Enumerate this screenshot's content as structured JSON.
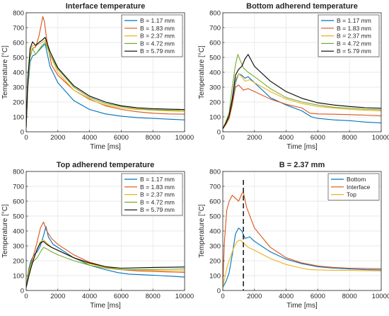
{
  "colors": {
    "blue": "#0072BD",
    "orange": "#D95319",
    "yellow": "#EDB120",
    "green": "#77AC30",
    "black": "#000000"
  },
  "chart_data": [
    {
      "type": "line",
      "title": "Interface temperature",
      "xlabel": "Time [ms]",
      "ylabel": "Temperature [°C]",
      "xlim": [
        0,
        10000
      ],
      "ylim": [
        0,
        800
      ],
      "xticks": [
        0,
        2000,
        4000,
        6000,
        8000,
        10000
      ],
      "yticks": [
        0,
        100,
        200,
        300,
        400,
        500,
        600,
        700,
        800
      ],
      "grid": true,
      "legend_position": "top-right",
      "series": [
        {
          "name": "B = 1.17 mm",
          "color": "blue",
          "x": [
            0,
            100,
            250,
            400,
            600,
            800,
            1000,
            1200,
            1500,
            2000,
            3000,
            4000,
            5000,
            6000,
            7000,
            8000,
            9000,
            10000
          ],
          "y": [
            30,
            280,
            470,
            510,
            520,
            545,
            570,
            590,
            440,
            330,
            210,
            150,
            120,
            105,
            95,
            90,
            85,
            80
          ]
        },
        {
          "name": "B = 1.83 mm",
          "color": "orange",
          "x": [
            0,
            100,
            250,
            400,
            600,
            800,
            950,
            1050,
            1150,
            1300,
            1600,
            2000,
            3000,
            4000,
            5000,
            6000,
            7000,
            8000,
            9000,
            10000
          ],
          "y": [
            30,
            300,
            510,
            560,
            570,
            640,
            720,
            775,
            740,
            620,
            450,
            380,
            280,
            220,
            175,
            150,
            135,
            125,
            120,
            118
          ]
        },
        {
          "name": "B = 2.37 mm",
          "color": "yellow",
          "x": [
            0,
            100,
            250,
            400,
            600,
            800,
            1000,
            1200,
            1500,
            2000,
            3000,
            4000,
            5000,
            6000,
            7000,
            8000,
            9000,
            10000
          ],
          "y": [
            30,
            320,
            540,
            580,
            580,
            590,
            600,
            615,
            520,
            400,
            280,
            215,
            180,
            160,
            150,
            145,
            140,
            138
          ]
        },
        {
          "name": "B = 4.72 mm",
          "color": "green",
          "x": [
            0,
            100,
            250,
            400,
            600,
            800,
            1000,
            1200,
            1500,
            2000,
            3000,
            4000,
            5000,
            6000,
            7000,
            8000,
            9000,
            10000
          ],
          "y": [
            30,
            320,
            500,
            560,
            520,
            550,
            580,
            600,
            520,
            420,
            300,
            230,
            190,
            170,
            155,
            148,
            145,
            143
          ]
        },
        {
          "name": "B = 5.79 mm",
          "color": "black",
          "x": [
            0,
            100,
            250,
            400,
            600,
            800,
            1000,
            1200,
            1500,
            2000,
            3000,
            4000,
            5000,
            6000,
            7000,
            8000,
            9000,
            10000
          ],
          "y": [
            30,
            350,
            560,
            605,
            580,
            600,
            615,
            635,
            540,
            430,
            310,
            240,
            200,
            175,
            162,
            155,
            152,
            150
          ]
        }
      ]
    },
    {
      "type": "line",
      "title": "Bottom adherend temperature",
      "xlabel": "Time [ms]",
      "ylabel": "Temperature [°C]",
      "xlim": [
        0,
        10000
      ],
      "ylim": [
        0,
        800
      ],
      "xticks": [
        0,
        2000,
        4000,
        6000,
        8000,
        10000
      ],
      "yticks": [
        0,
        100,
        200,
        300,
        400,
        500,
        600,
        700,
        800
      ],
      "grid": true,
      "legend_position": "top-right",
      "series": [
        {
          "name": "B = 1.17 mm",
          "color": "blue",
          "x": [
            0,
            200,
            400,
            600,
            800,
            1000,
            1200,
            1400,
            1600,
            2000,
            3000,
            4000,
            5000,
            5600,
            6000,
            7000,
            8000,
            9000,
            10000
          ],
          "y": [
            20,
            60,
            100,
            200,
            330,
            390,
            380,
            360,
            370,
            330,
            230,
            180,
            140,
            100,
            90,
            80,
            75,
            65,
            60
          ]
        },
        {
          "name": "B = 1.83 mm",
          "color": "orange",
          "x": [
            0,
            200,
            400,
            600,
            800,
            1000,
            1300,
            1600,
            2000,
            3000,
            4000,
            5000,
            5500,
            6000,
            7000,
            8000,
            9000,
            10000
          ],
          "y": [
            20,
            50,
            90,
            180,
            300,
            315,
            280,
            290,
            270,
            220,
            185,
            160,
            125,
            120,
            118,
            115,
            112,
            108
          ]
        },
        {
          "name": "B = 2.37 mm",
          "color": "yellow",
          "x": [
            0,
            200,
            400,
            600,
            800,
            1000,
            1200,
            1400,
            1700,
            2000,
            3000,
            4000,
            5000,
            6000,
            7000,
            8000,
            9000,
            10000
          ],
          "y": [
            20,
            60,
            110,
            230,
            350,
            390,
            370,
            340,
            350,
            330,
            270,
            220,
            190,
            170,
            160,
            150,
            145,
            140
          ]
        },
        {
          "name": "B = 4.72 mm",
          "color": "green",
          "x": [
            0,
            200,
            400,
            600,
            800,
            950,
            1100,
            1300,
            1600,
            2000,
            3000,
            4000,
            5000,
            6000,
            7000,
            8000,
            9000,
            10000
          ],
          "y": [
            20,
            70,
            130,
            300,
            450,
            520,
            480,
            430,
            400,
            370,
            290,
            230,
            200,
            180,
            165,
            158,
            152,
            148
          ]
        },
        {
          "name": "B = 5.79 mm",
          "color": "black",
          "x": [
            0,
            200,
            400,
            600,
            800,
            1000,
            1200,
            1400,
            1600,
            2000,
            3000,
            4000,
            5000,
            6000,
            7000,
            8000,
            9000,
            10000
          ],
          "y": [
            20,
            60,
            110,
            220,
            380,
            420,
            440,
            490,
            520,
            440,
            340,
            270,
            225,
            195,
            180,
            170,
            162,
            158
          ]
        }
      ]
    },
    {
      "type": "line",
      "title": "Top adherend temperature",
      "xlabel": "Time [ms]",
      "ylabel": "Temperature [°C]",
      "xlim": [
        0,
        10000
      ],
      "ylim": [
        0,
        800
      ],
      "xticks": [
        0,
        2000,
        4000,
        6000,
        8000,
        10000
      ],
      "yticks": [
        0,
        100,
        200,
        300,
        400,
        500,
        600,
        700,
        800
      ],
      "grid": true,
      "legend_position": "top-right",
      "series": [
        {
          "name": "B = 1.17 mm",
          "color": "blue",
          "x": [
            0,
            150,
            300,
            500,
            700,
            900,
            1100,
            1250,
            1400,
            1700,
            2000,
            3000,
            4000,
            5000,
            5800,
            6500,
            7500,
            8500,
            10000
          ],
          "y": [
            20,
            140,
            200,
            240,
            260,
            300,
            370,
            430,
            360,
            310,
            290,
            220,
            170,
            140,
            120,
            110,
            105,
            100,
            90
          ]
        },
        {
          "name": "B = 1.83 mm",
          "color": "orange",
          "x": [
            0,
            150,
            300,
            500,
            700,
            900,
            1100,
            1300,
            1600,
            2000,
            3000,
            4000,
            5000,
            6000,
            7000,
            8000,
            9000,
            10000
          ],
          "y": [
            20,
            120,
            180,
            250,
            330,
            420,
            460,
            400,
            350,
            310,
            240,
            190,
            160,
            140,
            132,
            128,
            125,
            122
          ]
        },
        {
          "name": "B = 2.37 mm",
          "color": "yellow",
          "x": [
            0,
            150,
            300,
            500,
            700,
            900,
            1100,
            1300,
            1600,
            2000,
            3000,
            4000,
            5000,
            6000,
            7000,
            8000,
            9000,
            10000
          ],
          "y": [
            20,
            100,
            170,
            220,
            280,
            330,
            340,
            320,
            290,
            270,
            220,
            180,
            155,
            142,
            138,
            135,
            133,
            132
          ]
        },
        {
          "name": "B = 4.72 mm",
          "color": "green",
          "x": [
            0,
            150,
            300,
            500,
            700,
            900,
            1100,
            1300,
            1600,
            2000,
            3000,
            4000,
            5000,
            6000,
            7000,
            8000,
            9000,
            10000
          ],
          "y": [
            20,
            130,
            180,
            200,
            220,
            260,
            290,
            280,
            260,
            240,
            200,
            170,
            150,
            140,
            140,
            142,
            143,
            145
          ]
        },
        {
          "name": "B = 5.79 mm",
          "color": "black",
          "x": [
            0,
            150,
            300,
            500,
            700,
            900,
            1100,
            1300,
            1600,
            2000,
            3000,
            4000,
            5000,
            6000,
            7000,
            8000,
            9000,
            10000
          ],
          "y": [
            20,
            90,
            150,
            220,
            280,
            320,
            330,
            310,
            290,
            270,
            220,
            185,
            160,
            150,
            152,
            155,
            156,
            158
          ]
        }
      ]
    },
    {
      "type": "line",
      "title": "B = 2.37 mm",
      "xlabel": "Time [ms]",
      "ylabel": "Temperature [°C]",
      "xlim": [
        0,
        10000
      ],
      "ylim": [
        0,
        800
      ],
      "xticks": [
        0,
        2000,
        4000,
        6000,
        8000,
        10000
      ],
      "yticks": [
        0,
        100,
        200,
        300,
        400,
        500,
        600,
        700,
        800
      ],
      "grid": true,
      "legend_position": "top-right",
      "vline_x": 1300,
      "series": [
        {
          "name": "Bottom",
          "color": "blue",
          "x": [
            0,
            200,
            400,
            600,
            800,
            1000,
            1200,
            1400,
            1700,
            2000,
            3000,
            4000,
            5000,
            6000,
            7000,
            8000,
            9000,
            10000
          ],
          "y": [
            20,
            60,
            120,
            240,
            380,
            420,
            400,
            350,
            360,
            330,
            260,
            210,
            180,
            160,
            150,
            145,
            140,
            138
          ]
        },
        {
          "name": "Interface",
          "color": "orange",
          "x": [
            0,
            100,
            250,
            400,
            600,
            800,
            1000,
            1200,
            1300,
            1500,
            2000,
            3000,
            4000,
            5000,
            6000,
            7000,
            8000,
            9000,
            10000
          ],
          "y": [
            30,
            320,
            540,
            600,
            640,
            620,
            600,
            650,
            660,
            560,
            420,
            290,
            220,
            185,
            165,
            155,
            150,
            148,
            146
          ]
        },
        {
          "name": "Top",
          "color": "yellow",
          "x": [
            0,
            150,
            300,
            500,
            700,
            900,
            1100,
            1300,
            1600,
            2000,
            3000,
            4000,
            5000,
            5500,
            6000,
            7000,
            8000,
            9000,
            10000
          ],
          "y": [
            20,
            100,
            170,
            230,
            290,
            330,
            340,
            320,
            290,
            270,
            215,
            175,
            150,
            140,
            138,
            136,
            135,
            133,
            132
          ]
        }
      ]
    }
  ]
}
